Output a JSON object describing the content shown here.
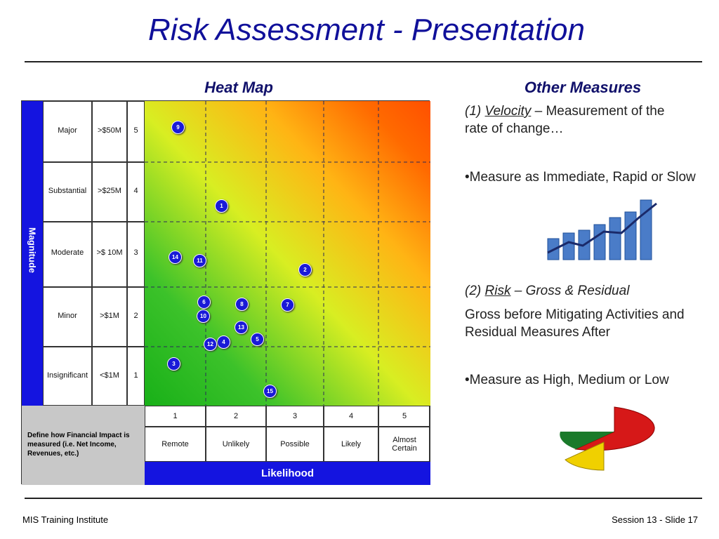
{
  "title": "Risk Assessment - Presentation",
  "heat_map": {
    "title": "Heat Map",
    "magnitude_label": "Magnitude",
    "likelihood_label": "Likelihood",
    "note": "Define how Financial Impact is measured (i.e. Net Income, Revenues, etc.)",
    "rows": [
      {
        "label": "Major",
        "amount": ">$50M",
        "score": "5"
      },
      {
        "label": "Substantial",
        "amount": ">$25M",
        "score": "4"
      },
      {
        "label": "Moderate",
        "amount": ">$ 10M",
        "score": "3"
      },
      {
        "label": "Minor",
        "amount": ">$1M",
        "score": "2"
      },
      {
        "label": "Insignificant",
        "amount": "<$1M",
        "score": "1"
      }
    ],
    "columns": [
      {
        "score": "1",
        "label": "Remote"
      },
      {
        "score": "2",
        "label": "Unlikely"
      },
      {
        "score": "3",
        "label": "Possible"
      },
      {
        "score": "4",
        "label": "Likely"
      },
      {
        "score": "5",
        "label": "Almost Certain"
      }
    ],
    "risks": [
      "9",
      "1",
      "14",
      "11",
      "2",
      "6",
      "8",
      "7",
      "10",
      "13",
      "5",
      "4",
      "12",
      "3",
      "15"
    ]
  },
  "other_measures": {
    "title": "Other Measures",
    "items": [
      {
        "prefix": "(1) ",
        "term": "Velocity",
        "text": " – Measurement of the rate of change…"
      },
      {
        "text": "•Measure as Immediate, Rapid or Slow"
      },
      {
        "prefix": "(2) ",
        "term": "Risk",
        "text": " – Gross & Residual"
      },
      {
        "text": "Gross before Mitigating Activities and Residual Measures After"
      },
      {
        "text": "•Measure as High, Medium or Low"
      }
    ]
  },
  "footer": {
    "left": "MIS Training Institute",
    "right": "Session 13 - Slide 17"
  }
}
